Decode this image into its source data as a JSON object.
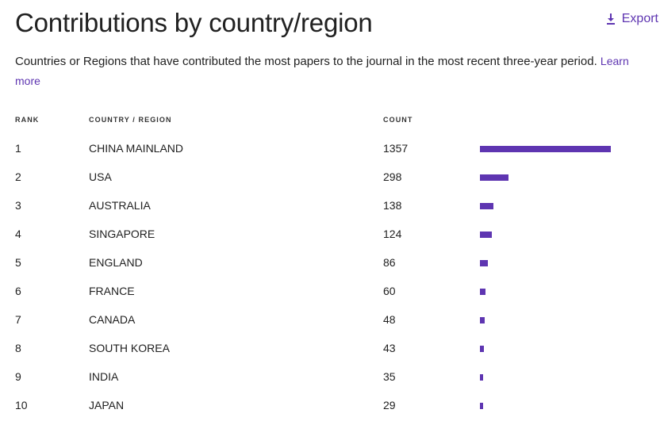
{
  "header": {
    "title": "Contributions by country/region",
    "export_label": "Export"
  },
  "description": {
    "text": "Countries or Regions that have contributed the most papers to the journal in the most recent three-year period.",
    "learn_more": "Learn more"
  },
  "table": {
    "columns": [
      "RANK",
      "COUNTRY / REGION",
      "COUNT"
    ],
    "rows": [
      {
        "rank": "1",
        "country": "CHINA MAINLAND",
        "count": "1357"
      },
      {
        "rank": "2",
        "country": "USA",
        "count": "298"
      },
      {
        "rank": "3",
        "country": "AUSTRALIA",
        "count": "138"
      },
      {
        "rank": "4",
        "country": "SINGAPORE",
        "count": "124"
      },
      {
        "rank": "5",
        "country": "ENGLAND",
        "count": "86"
      },
      {
        "rank": "6",
        "country": "FRANCE",
        "count": "60"
      },
      {
        "rank": "7",
        "country": "CANADA",
        "count": "48"
      },
      {
        "rank": "8",
        "country": "SOUTH KOREA",
        "count": "43"
      },
      {
        "rank": "9",
        "country": "INDIA",
        "count": "35"
      },
      {
        "rank": "10",
        "country": "JAPAN",
        "count": "29"
      }
    ]
  },
  "colors": {
    "accent": "#5e35b1",
    "text": "#212121"
  },
  "icons": {
    "export": "download-icon"
  }
}
